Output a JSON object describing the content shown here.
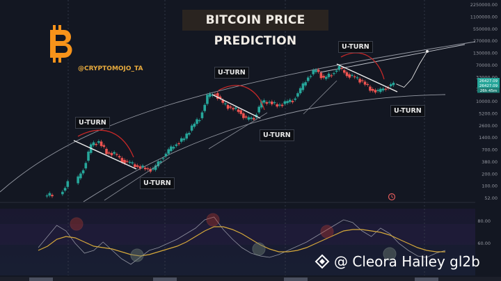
{
  "chart_data": {
    "type": "line",
    "title": "BITCOIN PRICE PREDICTION",
    "author_handle": "@CRYPTOMOJO_TA",
    "price_axis_ticks": [
      "2250000.00",
      "1100000.00",
      "550000.00",
      "270000.00",
      "130000.00",
      "70000.00",
      "33000.00",
      "16000.00",
      "10000.00",
      "5200.00",
      "2600.00",
      "1400.00",
      "700.00",
      "380.00",
      "200.00",
      "100.00",
      "52.00"
    ],
    "indicator_axis_ticks": [
      "80.00",
      "60.00"
    ],
    "current_price_labels": [
      "26427.09",
      "26427.09",
      "26h 45m"
    ],
    "annotations": [
      {
        "label": "U-TURN",
        "cycle": 1,
        "position": "above"
      },
      {
        "label": "U-TURN",
        "cycle": 1,
        "position": "below"
      },
      {
        "label": "U-TURN",
        "cycle": 2,
        "position": "above"
      },
      {
        "label": "U-TURN",
        "cycle": 2,
        "position": "below"
      },
      {
        "label": "U-TURN",
        "cycle": 3,
        "position": "above"
      },
      {
        "label": "U-TURN",
        "cycle": 3,
        "position": "below"
      }
    ],
    "price_candles_approx": [
      {
        "t": 0,
        "price": 60
      },
      {
        "t": 2,
        "price": 110
      },
      {
        "t": 4,
        "price": 250
      },
      {
        "t": 5,
        "price": 900
      },
      {
        "t": 6,
        "price": 1100
      },
      {
        "t": 7,
        "price": 600
      },
      {
        "t": 8,
        "price": 550
      },
      {
        "t": 9,
        "price": 400
      },
      {
        "t": 10,
        "price": 330
      },
      {
        "t": 11,
        "price": 280
      },
      {
        "t": 12,
        "price": 250
      },
      {
        "t": 13,
        "price": 230
      },
      {
        "t": 14,
        "price": 420
      },
      {
        "t": 15,
        "price": 650
      },
      {
        "t": 16,
        "price": 1000
      },
      {
        "t": 17,
        "price": 1300
      },
      {
        "t": 18,
        "price": 2500
      },
      {
        "t": 19,
        "price": 4000
      },
      {
        "t": 20,
        "price": 13000
      },
      {
        "t": 21,
        "price": 16000
      },
      {
        "t": 22,
        "price": 9000
      },
      {
        "t": 23,
        "price": 7000
      },
      {
        "t": 24,
        "price": 6200
      },
      {
        "t": 25,
        "price": 3700
      },
      {
        "t": 26,
        "price": 4200
      },
      {
        "t": 27,
        "price": 9500
      },
      {
        "t": 28,
        "price": 10000
      },
      {
        "t": 29,
        "price": 8000
      },
      {
        "t": 30,
        "price": 9200
      },
      {
        "t": 31,
        "price": 11000
      },
      {
        "t": 32,
        "price": 19000
      },
      {
        "t": 33,
        "price": 40000
      },
      {
        "t": 34,
        "price": 58000
      },
      {
        "t": 35,
        "price": 35000
      },
      {
        "t": 36,
        "price": 47000
      },
      {
        "t": 37,
        "price": 64000
      },
      {
        "t": 38,
        "price": 45000
      },
      {
        "t": 39,
        "price": 38000
      },
      {
        "t": 40,
        "price": 30000
      },
      {
        "t": 41,
        "price": 20000
      },
      {
        "t": 42,
        "price": 17000
      },
      {
        "t": 43,
        "price": 22000
      },
      {
        "t": 44,
        "price": 26427
      }
    ],
    "prediction_path": [
      {
        "t": 44,
        "price": 26427
      },
      {
        "t": 45,
        "price": 22000
      },
      {
        "t": 46,
        "price": 35000
      },
      {
        "t": 47,
        "price": 80000
      },
      {
        "t": 48,
        "price": 160000
      }
    ],
    "indicator_series": {
      "name": "",
      "values": [
        62,
        70,
        78,
        74,
        65,
        58,
        60,
        66,
        60,
        54,
        50,
        55,
        60,
        62,
        65,
        68,
        72,
        76,
        82,
        84,
        75,
        68,
        62,
        58,
        56,
        55,
        57,
        60,
        63,
        66,
        70,
        74,
        78,
        82,
        80,
        74,
        70,
        76,
        72,
        65,
        60,
        56,
        55,
        58,
        60
      ]
    },
    "indicator_ma": {
      "values": [
        60,
        63,
        68,
        70,
        69,
        66,
        63,
        62,
        61,
        59,
        57,
        56,
        57,
        59,
        61,
        63,
        66,
        70,
        74,
        77,
        77,
        75,
        72,
        68,
        64,
        61,
        59,
        59,
        60,
        62,
        65,
        68,
        71,
        74,
        75,
        75,
        74,
        73,
        71,
        68,
        65,
        62,
        60,
        59,
        59
      ]
    },
    "grid": true,
    "y_scale": "log"
  },
  "watermark": "@ Cleora Halley gl2b",
  "colors": {
    "bg": "#131722",
    "up": "#26a69a",
    "down": "#ef5350",
    "logo": "#f7931a",
    "ma": "#d6a93a"
  }
}
